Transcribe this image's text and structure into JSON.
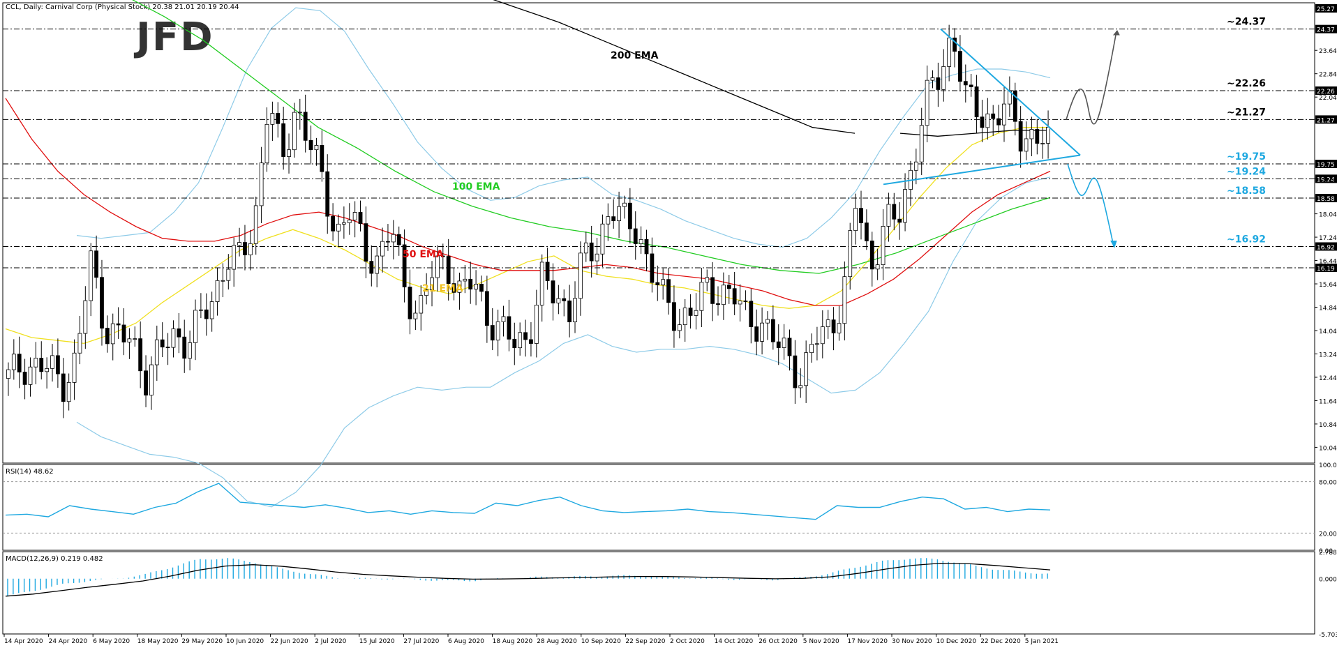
{
  "header": "CCL, Daily:  Carnival Corp (Physical Stock)  20.38 21.01 20.19 20.44",
  "logo": "JFD",
  "colors": {
    "ema21": "#f0e020",
    "ema50": "#e01010",
    "ema100": "#22cc22",
    "ema200": "#000000",
    "bollinger": "#8ecbe8",
    "trend": "#1ea8e0",
    "rsi": "#1ea8e0",
    "macd_hist": "#1ea8e0",
    "macd_signal": "#000000",
    "candle_bull": "#ffffff",
    "candle_bear": "#000000"
  },
  "labels": {
    "ema200": "200 EMA",
    "ema100": "100 EMA",
    "ema50": "50 EMA",
    "ema21": "21 EMA"
  },
  "levels": [
    {
      "value": 24.37,
      "text": "~24.37",
      "axis": "24.37",
      "color": "#000000"
    },
    {
      "value": 22.26,
      "text": "~22.26",
      "axis": "22.26",
      "color": "#000000"
    },
    {
      "value": 21.27,
      "text": "~21.27",
      "axis": "21.27",
      "color": "#000000"
    },
    {
      "value": 19.75,
      "text": "~19.75",
      "axis": "19.75",
      "color": "#1ea8e0"
    },
    {
      "value": 19.24,
      "text": "~19.24",
      "axis": "19.24",
      "color": "#1ea8e0"
    },
    {
      "value": 18.58,
      "text": "~18.58",
      "axis": "18.58",
      "color": "#1ea8e0"
    },
    {
      "value": 16.92,
      "text": "~16.92",
      "axis": "16.92",
      "color": "#1ea8e0"
    },
    {
      "value": 16.19,
      "text": "",
      "axis": "16.19",
      "color": "#000000"
    }
  ],
  "top_axis_label": "25.27",
  "chart_data": [
    {
      "type": "candlestick",
      "title": "CCL, Daily:  Carnival Corp (Physical Stock)  20.38 21.01 20.19 20.44",
      "ylim": [
        9.5,
        25.27
      ],
      "y_ticks": [
        "23.64",
        "22.84",
        "22.04",
        "19.24",
        "18.04",
        "17.24",
        "16.44",
        "15.64",
        "14.84",
        "14.04",
        "13.24",
        "12.44",
        "11.64",
        "10.84",
        "10.04"
      ],
      "x_labels": [
        "14 Apr 2020",
        "24 Apr 2020",
        "6 May 2020",
        "18 May 2020",
        "29 May 2020",
        "10 Jun 2020",
        "22 Jun 2020",
        "2 Jul 2020",
        "15 Jul 2020",
        "27 Jul 2020",
        "6 Aug 2020",
        "18 Aug 2020",
        "28 Aug 2020",
        "10 Sep 2020",
        "22 Sep 2020",
        "2 Oct 2020",
        "14 Oct 2020",
        "26 Oct 2020",
        "5 Nov 2020",
        "17 Nov 2020",
        "30 Nov 2020",
        "10 Dec 2020",
        "22 Dec 2020",
        "5 Jan 2021"
      ],
      "grid": false,
      "key_points": {
        "close": [
          12.4,
          12.9,
          12.8,
          12.7,
          12.3,
          13.0,
          16.5,
          14.3,
          13.8,
          13.7,
          12.5,
          13.2,
          13.9,
          13.7,
          14.3,
          15.2,
          16.6,
          16.4,
          17.8,
          22.0,
          19.7,
          21.8,
          20.5,
          19.0,
          17.4,
          18.1,
          16.8,
          16.5,
          17.5,
          15.5,
          14.6,
          16.0,
          16.5,
          15.3,
          15.7,
          14.6,
          14.0,
          13.6,
          13.9,
          15.7,
          15.2,
          14.8,
          16.4,
          16.9,
          18.4,
          17.7,
          17.5,
          16.1,
          14.9,
          14.5,
          14.7,
          15.4,
          15.5,
          15.2,
          14.4,
          14.4,
          13.6,
          13.2,
          12.4,
          13.7,
          14.2,
          15.1,
          18.6,
          16.2,
          17.6,
          17.8,
          19.6,
          21.8,
          22.7,
          24.3,
          21.9,
          21.5,
          21.3,
          21.7,
          20.8,
          20.7,
          20.4
        ],
        "ema21": [
          14.1,
          13.8,
          13.7,
          13.6,
          13.9,
          14.3,
          15.0,
          15.6,
          16.2,
          16.8,
          17.2,
          17.5,
          17.2,
          16.8,
          16.3,
          15.8,
          15.5,
          15.3,
          15.6,
          16.0,
          16.4,
          16.6,
          16.1,
          15.9,
          15.8,
          15.6,
          15.5,
          15.3,
          15.1,
          14.9,
          14.8,
          14.9,
          15.4,
          16.4,
          17.5,
          18.6,
          19.6,
          20.4,
          20.8,
          21.0,
          21.0
        ],
        "ema50": [
          22.0,
          20.6,
          19.5,
          18.7,
          18.1,
          17.6,
          17.2,
          17.1,
          17.1,
          17.3,
          17.7,
          18.0,
          18.1,
          17.9,
          17.6,
          17.3,
          16.9,
          16.6,
          16.3,
          16.1,
          16.1,
          16.1,
          16.2,
          16.3,
          16.2,
          16.0,
          15.9,
          15.8,
          15.6,
          15.4,
          15.1,
          14.9,
          14.9,
          15.3,
          15.8,
          16.5,
          17.3,
          18.1,
          18.7,
          19.1,
          19.5
        ],
        "ema100": [
          25.5,
          24.8,
          24.0,
          23.0,
          22.0,
          21.0,
          20.3,
          19.5,
          18.8,
          18.3,
          17.9,
          17.6,
          17.4,
          17.1,
          16.9,
          16.6,
          16.3,
          16.1,
          16.0,
          16.3,
          16.7,
          17.2,
          17.7,
          18.2,
          18.6
        ],
        "ema200": [
          25.6,
          25.1,
          24.6,
          24.0,
          23.4,
          22.8,
          22.2,
          21.6,
          21.0,
          20.8,
          20.7,
          20.8,
          20.9,
          20.9
        ],
        "bb_upper": [
          null,
          null,
          null,
          null,
          null,
          null,
          null,
          null,
          null,
          null,
          null,
          null,
          null,
          null,
          null,
          null,
          null,
          null
        ],
        "rsi": [
          41,
          42,
          39,
          52,
          48,
          45,
          42,
          50,
          55,
          68,
          78,
          56,
          54,
          52,
          50,
          53,
          49,
          44,
          46,
          42,
          46,
          44,
          43,
          55,
          52,
          58,
          62,
          52,
          46,
          44,
          45,
          46,
          48,
          45,
          44,
          42,
          40,
          38,
          36,
          52,
          50,
          50,
          57,
          62,
          60,
          48,
          50,
          45,
          48,
          47
        ],
        "macd": [
          -1.8,
          -1.2,
          -0.6,
          -0.2,
          0.0,
          0.4,
          1.2,
          2.0,
          2.1,
          1.7,
          1.0,
          0.5,
          0.1,
          0.0,
          0.0,
          -0.1,
          -0.2,
          -0.2,
          0.0,
          0.1,
          0.2,
          0.2,
          0.3,
          0.3,
          0.2,
          0.1,
          0.0,
          -0.1,
          -0.1,
          0.1,
          0.5,
          1.2,
          1.8,
          2.1,
          2.0,
          1.5,
          1.0,
          0.7,
          0.5
        ]
      }
    },
    {
      "type": "line",
      "title": "RSI(14) 48.62",
      "ylim": [
        0,
        100
      ],
      "y_ticks": [
        "100.00",
        "80.00",
        "20.00",
        "0.00"
      ]
    },
    {
      "type": "bar",
      "title": "MACD(12,26,9) 0.219 0.482",
      "ylim": [
        -5.703,
        2.788
      ],
      "y_ticks": [
        "2.788",
        "0.000",
        "-5.703"
      ]
    }
  ]
}
